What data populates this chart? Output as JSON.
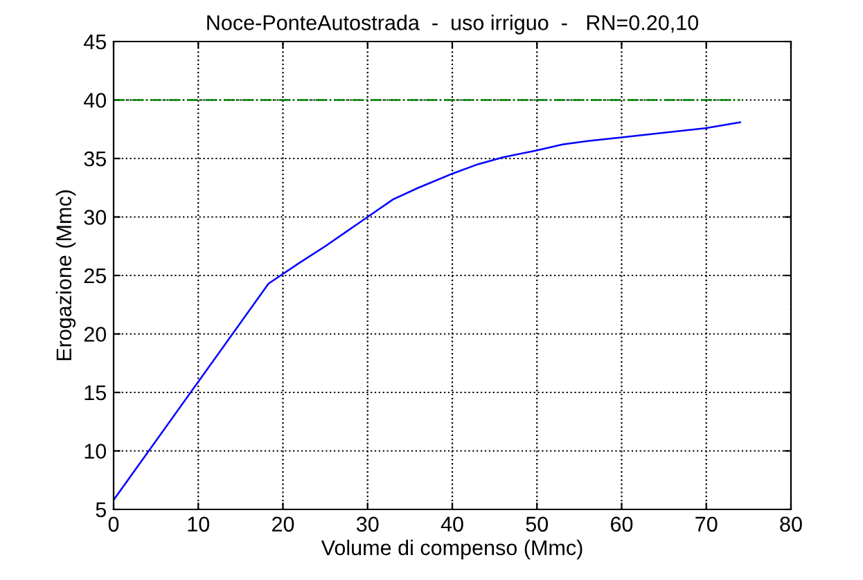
{
  "chart_data": {
    "type": "line",
    "title": "Noce-PonteAutostrada  -  uso irriguo  -   RN=0.20,10",
    "xlabel": "Volume di compenso (Mmc)",
    "ylabel": "Erogazione (Mmc)",
    "xlim": [
      0,
      80
    ],
    "xticks": [
      0,
      10,
      20,
      30,
      40,
      50,
      60,
      70,
      80
    ],
    "ylim": [
      5,
      45
    ],
    "yticks": [
      5,
      10,
      15,
      20,
      25,
      30,
      35,
      40,
      45
    ],
    "grid": true,
    "series": [
      {
        "color": "#0000ff",
        "line_style": "solid",
        "x": [
          0,
          18.3,
          22,
          25,
          28,
          30,
          33,
          36,
          40,
          43,
          46,
          50,
          53,
          56,
          60,
          65,
          70,
          74
        ],
        "values": [
          5.8,
          24.3,
          26.1,
          27.5,
          29,
          30,
          31.5,
          32.5,
          33.7,
          34.5,
          35.1,
          35.7,
          36.2,
          36.5,
          36.8,
          37.2,
          37.6,
          38.1
        ]
      },
      {
        "color": "#008000",
        "line_style": "dashdot",
        "x": [
          0,
          74
        ],
        "values": [
          40,
          40
        ]
      }
    ]
  }
}
